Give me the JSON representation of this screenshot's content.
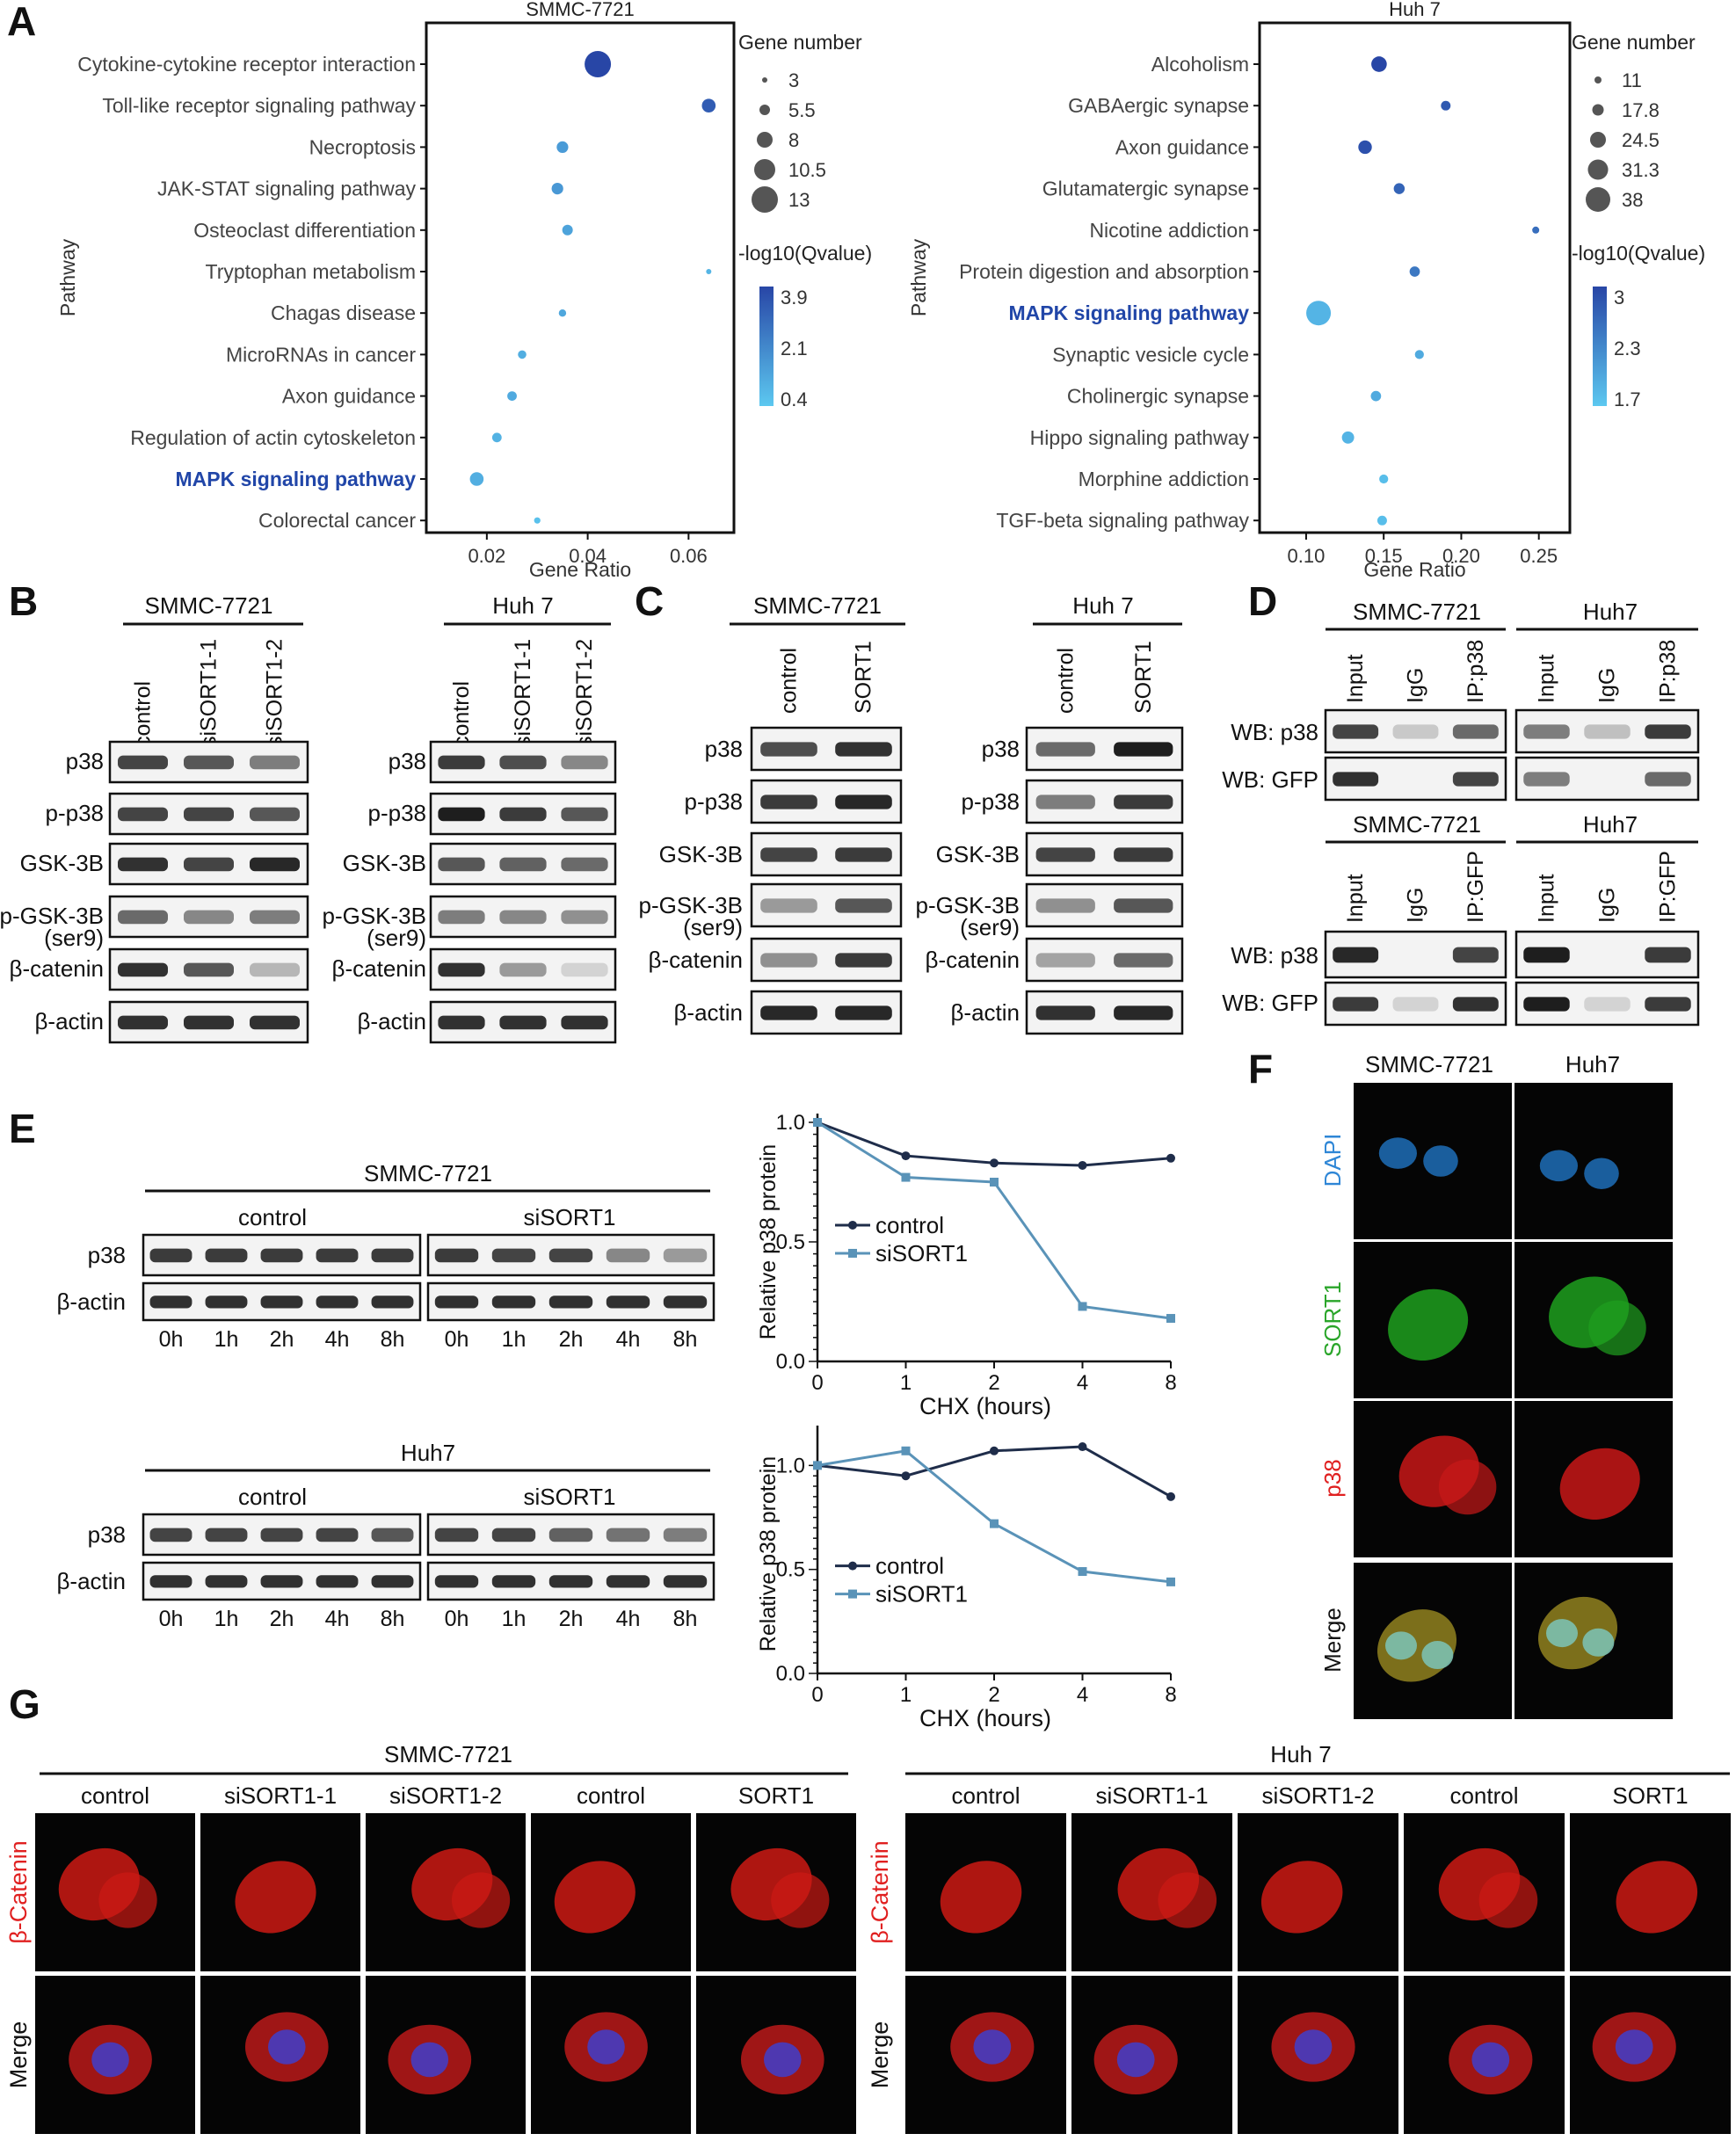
{
  "panel_letters": [
    "A",
    "B",
    "C",
    "D",
    "E",
    "F",
    "G"
  ],
  "colors": {
    "ink": "#333333",
    "highlight": "#2146a8",
    "dark": "#1f2d4a",
    "light": "#5a93b8",
    "dapi": "#2e86d6",
    "sort1": "#2aa52a",
    "red": "#e02020"
  },
  "panelA": {
    "left": {
      "title": "SMMC-7721",
      "xlabel": "Gene Ratio",
      "ylabel": "Pathway",
      "xticks": [
        "0.02",
        "0.04",
        "0.06"
      ],
      "legend_size_title": "Gene number",
      "legend_sizes": [
        "3",
        "5.5",
        "8",
        "10.5",
        "13"
      ],
      "legend_color_title": "-log10(Qvalue)",
      "legend_colors": [
        "3.9",
        "2.1",
        "0.4"
      ]
    },
    "right": {
      "title": "Huh 7",
      "xlabel": "Gene Ratio",
      "ylabel": "Pathway",
      "xticks": [
        "0.10",
        "0.15",
        "0.20",
        "0.25"
      ],
      "legend_size_title": "Gene number",
      "legend_sizes": [
        "11",
        "17.8",
        "24.5",
        "31.3",
        "38"
      ],
      "legend_color_title": "-log10(Qvalue)",
      "legend_colors": [
        "3",
        "2.3",
        "1.7"
      ]
    }
  },
  "panelB": {
    "groups": [
      {
        "title": "SMMC-7721",
        "lanes": [
          "control",
          "siSORT1-1",
          "siSORT1-2"
        ]
      },
      {
        "title": "Huh 7",
        "lanes": [
          "control",
          "siSORT1-1",
          "siSORT1-2"
        ]
      }
    ],
    "rows": [
      "p38",
      "p-p38",
      "GSK-3B",
      "p-GSK-3B",
      "(ser9)",
      "β-catenin",
      "β-actin"
    ]
  },
  "panelC": {
    "groups": [
      {
        "title": "SMMC-7721",
        "lanes": [
          "control",
          "SORT1"
        ]
      },
      {
        "title": "Huh 7",
        "lanes": [
          "control",
          "SORT1"
        ]
      }
    ],
    "rows": [
      "p38",
      "p-p38",
      "GSK-3B",
      "p-GSK-3B",
      "(ser9)",
      "β-catenin",
      "β-actin"
    ]
  },
  "panelD": {
    "top_groups": [
      "SMMC-7721",
      "Huh7"
    ],
    "top_lanes": [
      "Input",
      "IgG",
      "IP:p38"
    ],
    "bottom_groups": [
      "SMMC-7721",
      "Huh7"
    ],
    "bottom_lanes": [
      "Input",
      "IgG",
      "IP:GFP"
    ],
    "rows": [
      "WB: p38",
      "WB: GFP"
    ]
  },
  "panelE": {
    "blots": [
      {
        "title": "SMMC-7721",
        "groups": [
          "control",
          "siSORT1"
        ],
        "rows": [
          "p38",
          "β-actin"
        ],
        "times": [
          "0h",
          "1h",
          "2h",
          "4h",
          "8h"
        ]
      },
      {
        "title": "Huh7",
        "groups": [
          "control",
          "siSORT1"
        ],
        "rows": [
          "p38",
          "β-actin"
        ],
        "times": [
          "0h",
          "1h",
          "2h",
          "4h",
          "8h"
        ]
      }
    ]
  },
  "panelF": {
    "columns": [
      "SMMC-7721",
      "Huh7"
    ],
    "rows": [
      "DAPI",
      "SORT1",
      "p38",
      "Merge"
    ]
  },
  "panelG": {
    "groups": [
      {
        "title": "SMMC-7721",
        "columns": [
          "control",
          "siSORT1-1",
          "siSORT1-2",
          "control",
          "SORT1"
        ]
      },
      {
        "title": "Huh 7",
        "columns": [
          "control",
          "siSORT1-1",
          "siSORT1-2",
          "control",
          "SORT1"
        ]
      }
    ],
    "rows": [
      "β-Catenin",
      "Merge"
    ]
  },
  "chart_data": [
    {
      "type": "scatter",
      "title": "SMMC-7721",
      "xlabel": "Gene Ratio",
      "ylabel": "Pathway",
      "xlim": [
        0.008,
        0.069
      ],
      "categories": [
        "Cytokine-cytokine receptor interaction",
        "Toll-like receptor signaling pathway",
        "Necroptosis",
        "JAK-STAT signaling pathway",
        "Osteoclast differentiation",
        "Tryptophan metabolism",
        "Chagas disease",
        "MicroRNAs in cancer",
        "Axon guidance",
        "Regulation of actin cytoskeleton",
        "MAPK signaling pathway",
        "Colorectal cancer"
      ],
      "highlight": "MAPK signaling pathway",
      "x": [
        0.042,
        0.064,
        0.035,
        0.034,
        0.036,
        0.064,
        0.035,
        0.027,
        0.025,
        0.022,
        0.018,
        0.03
      ],
      "gene_number": [
        13,
        7,
        6,
        6,
        5.5,
        3,
        4,
        4.5,
        5,
        5,
        7,
        3.5
      ],
      "neg_log10_q": [
        3.9,
        3.3,
        1.6,
        1.7,
        1.4,
        0.9,
        1.3,
        1.1,
        1.2,
        1.0,
        1.1,
        0.6
      ],
      "size_legend": [
        3,
        5.5,
        8,
        10.5,
        13
      ],
      "color_range": [
        0.4,
        3.9
      ],
      "legend": "right"
    },
    {
      "type": "scatter",
      "title": "Huh 7",
      "xlabel": "Gene Ratio",
      "ylabel": "Pathway",
      "xlim": [
        0.07,
        0.27
      ],
      "categories": [
        "Alcoholism",
        "GABAergic synapse",
        "Axon guidance",
        "Glutamatergic synapse",
        "Nicotine addiction",
        "Protein digestion and absorption",
        "MAPK signaling pathway",
        "Synaptic vesicle cycle",
        "Cholinergic synapse",
        "Hippo signaling pathway",
        "Morphine addiction",
        "TGF-beta signaling pathway"
      ],
      "highlight": "MAPK signaling pathway",
      "x": [
        0.147,
        0.19,
        0.138,
        0.16,
        0.248,
        0.17,
        0.108,
        0.173,
        0.145,
        0.127,
        0.15,
        0.149
      ],
      "gene_number": [
        24,
        15,
        21,
        17,
        11,
        16,
        38,
        14,
        16,
        19,
        14,
        15
      ],
      "neg_log10_q": [
        3.0,
        2.8,
        2.9,
        2.7,
        2.6,
        2.5,
        1.9,
        2.0,
        2.0,
        1.9,
        1.8,
        1.8
      ],
      "size_legend": [
        11,
        17.8,
        24.5,
        31.3,
        38
      ],
      "color_range": [
        1.7,
        3.0
      ],
      "legend": "right"
    },
    {
      "type": "line",
      "panel": "E SMMC-7721",
      "xlabel": "CHX (hours)",
      "ylabel": "Relative p38 protein",
      "x": [
        0,
        1,
        2,
        4,
        8
      ],
      "xlim": [
        0,
        8
      ],
      "ylim": [
        0,
        1.0
      ],
      "yticks": [
        "0.0",
        "0.5",
        "1.0"
      ],
      "series": [
        {
          "name": "control",
          "values": [
            1.0,
            0.86,
            0.83,
            0.82,
            0.85
          ]
        },
        {
          "name": "siSORT1",
          "values": [
            1.0,
            0.77,
            0.75,
            0.23,
            0.18
          ]
        }
      ],
      "legend": "center"
    },
    {
      "type": "line",
      "panel": "E Huh7",
      "xlabel": "CHX (hours)",
      "ylabel": "Relative p38 protein",
      "x": [
        0,
        1,
        2,
        4,
        8
      ],
      "xlim": [
        0,
        8
      ],
      "ylim": [
        0,
        1.0
      ],
      "yticks": [
        "0.0",
        "0.5",
        "1.0"
      ],
      "series": [
        {
          "name": "control",
          "values": [
            1.0,
            0.95,
            1.07,
            1.09,
            0.85
          ]
        },
        {
          "name": "siSORT1",
          "values": [
            1.0,
            1.07,
            0.72,
            0.49,
            0.44
          ]
        }
      ],
      "legend": "center"
    }
  ]
}
